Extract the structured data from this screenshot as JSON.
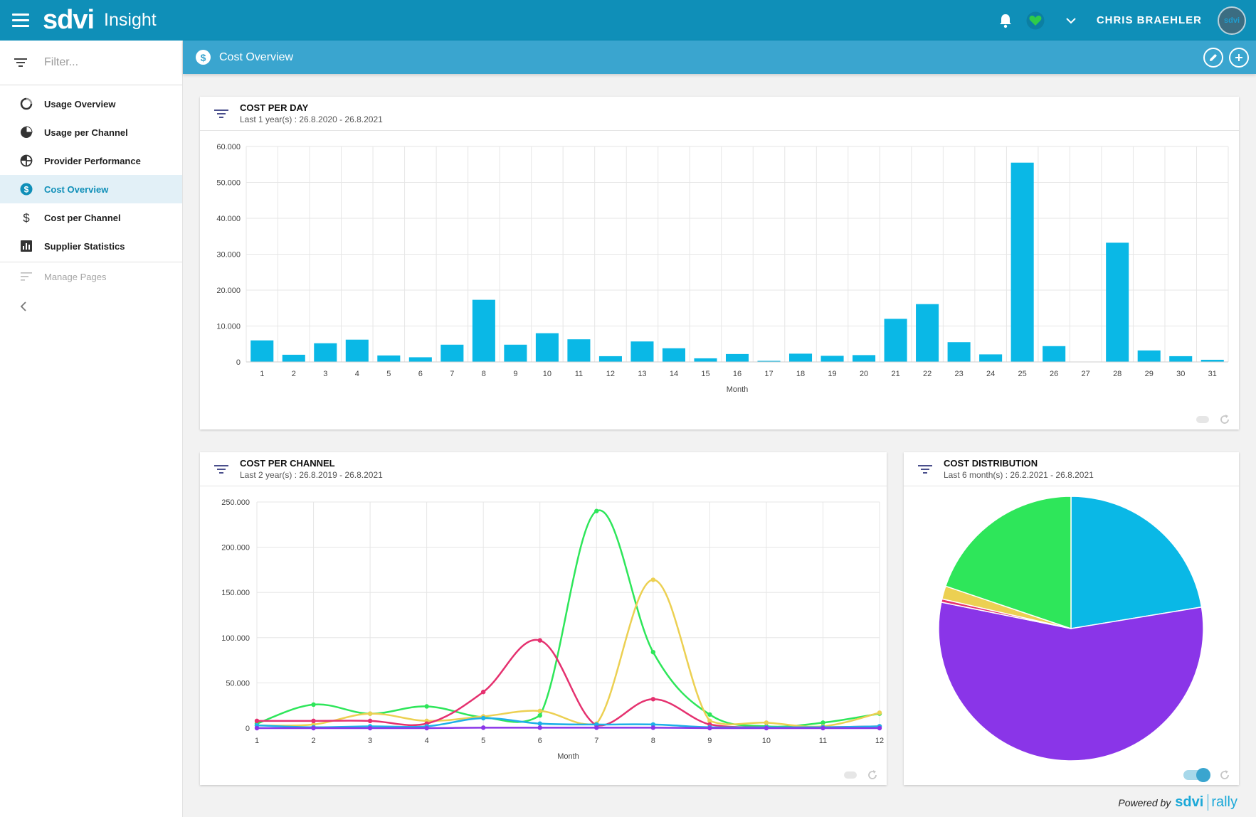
{
  "topbar": {
    "brand": "sdvi",
    "app_name": "Insight",
    "user_name": "CHRIS BRAEHLER",
    "avatar_label": "sdvi"
  },
  "sidebar": {
    "filter_placeholder": "Filter...",
    "items": [
      {
        "label": "Usage Overview",
        "icon": "circle-arrow-icon"
      },
      {
        "label": "Usage per Channel",
        "icon": "pie-chart-icon"
      },
      {
        "label": "Provider Performance",
        "icon": "quarter-circle-icon"
      },
      {
        "label": "Cost Overview",
        "icon": "dollar-circle-icon",
        "active": true
      },
      {
        "label": "Cost per Channel",
        "icon": "dollar-icon"
      },
      {
        "label": "Supplier Statistics",
        "icon": "bar-chart-icon"
      }
    ],
    "manage_label": "Manage Pages"
  },
  "page_header": {
    "title": "Cost Overview"
  },
  "cards": {
    "cost_per_day": {
      "title": "COST PER DAY",
      "subtitle": "Last 1 year(s) : 26.8.2020 - 26.8.2021"
    },
    "cost_per_channel": {
      "title": "COST PER CHANNEL",
      "subtitle": "Last 2 year(s) : 26.8.2019 - 26.8.2021"
    },
    "cost_distribution": {
      "title": "COST DISTRIBUTION",
      "subtitle": "Last 6 month(s) : 26.2.2021 - 26.8.2021"
    }
  },
  "footer": {
    "powered_by": "Powered by",
    "logo_main": "sdvi",
    "logo_sub": "rally"
  },
  "colors": {
    "topbar": "#0f8fb8",
    "header": "#3aa5cf",
    "bar": "#0ab8e6",
    "green": "#2ee65a",
    "yellow": "#ecd052",
    "pink": "#e5316f",
    "blue": "#1eb0e8",
    "purple": "#8a35e8"
  },
  "chart_data": [
    {
      "type": "bar",
      "title": "COST PER DAY",
      "xlabel": "Month",
      "ylabel": "",
      "ylim": [
        0,
        60000
      ],
      "yticks": [
        "0",
        "10.000",
        "20.000",
        "30.000",
        "40.000",
        "50.000",
        "60.000"
      ],
      "categories": [
        "1",
        "2",
        "3",
        "4",
        "5",
        "6",
        "7",
        "8",
        "9",
        "10",
        "11",
        "12",
        "13",
        "14",
        "15",
        "16",
        "17",
        "18",
        "19",
        "20",
        "21",
        "22",
        "23",
        "24",
        "25",
        "26",
        "27",
        "28",
        "29",
        "30",
        "31"
      ],
      "values": [
        6000,
        2000,
        5200,
        6200,
        1800,
        1300,
        4800,
        17300,
        4800,
        8000,
        6300,
        1600,
        5700,
        3800,
        1000,
        2200,
        300,
        2300,
        1700,
        1900,
        12000,
        16100,
        5500,
        2100,
        55500,
        4400,
        0,
        33200,
        3200,
        1600,
        600
      ],
      "grid": true
    },
    {
      "type": "line",
      "title": "COST PER CHANNEL",
      "xlabel": "Month",
      "ylabel": "",
      "ylim": [
        0,
        250000
      ],
      "yticks": [
        "0",
        "50.000",
        "100.000",
        "150.000",
        "200.000",
        "250.000"
      ],
      "x": [
        "1",
        "2",
        "3",
        "4",
        "5",
        "6",
        "7",
        "8",
        "9",
        "10",
        "11",
        "12"
      ],
      "series": [
        {
          "color": "#2ee65a",
          "values": [
            5000,
            26000,
            16000,
            24000,
            12000,
            14000,
            240000,
            84000,
            15000,
            2000,
            6000,
            16000
          ]
        },
        {
          "color": "#ecd052",
          "values": [
            3000,
            4000,
            16000,
            8000,
            13000,
            19000,
            5000,
            164000,
            8000,
            6000,
            2000,
            17000
          ]
        },
        {
          "color": "#e5316f",
          "values": [
            8000,
            8000,
            8000,
            5000,
            40000,
            97000,
            3000,
            32000,
            4000,
            1000,
            1000,
            2000
          ]
        },
        {
          "color": "#1eb0e8",
          "values": [
            3000,
            1000,
            2000,
            2000,
            11000,
            5000,
            4000,
            4000,
            1000,
            1000,
            1000,
            2000
          ]
        },
        {
          "color": "#8a35e8",
          "values": [
            0,
            0,
            0,
            0,
            500,
            500,
            500,
            500,
            0,
            0,
            0,
            0
          ]
        }
      ],
      "grid": true
    },
    {
      "type": "pie",
      "title": "COST DISTRIBUTION",
      "slices": [
        {
          "color": "#0ab8e6",
          "value": 22.4
        },
        {
          "color": "#8a35e8",
          "value": 55.8
        },
        {
          "color": "#e5316f",
          "value": 0.4
        },
        {
          "color": "#ecd052",
          "value": 1.6
        },
        {
          "color": "#2ee65a",
          "value": 19.8
        }
      ]
    }
  ]
}
